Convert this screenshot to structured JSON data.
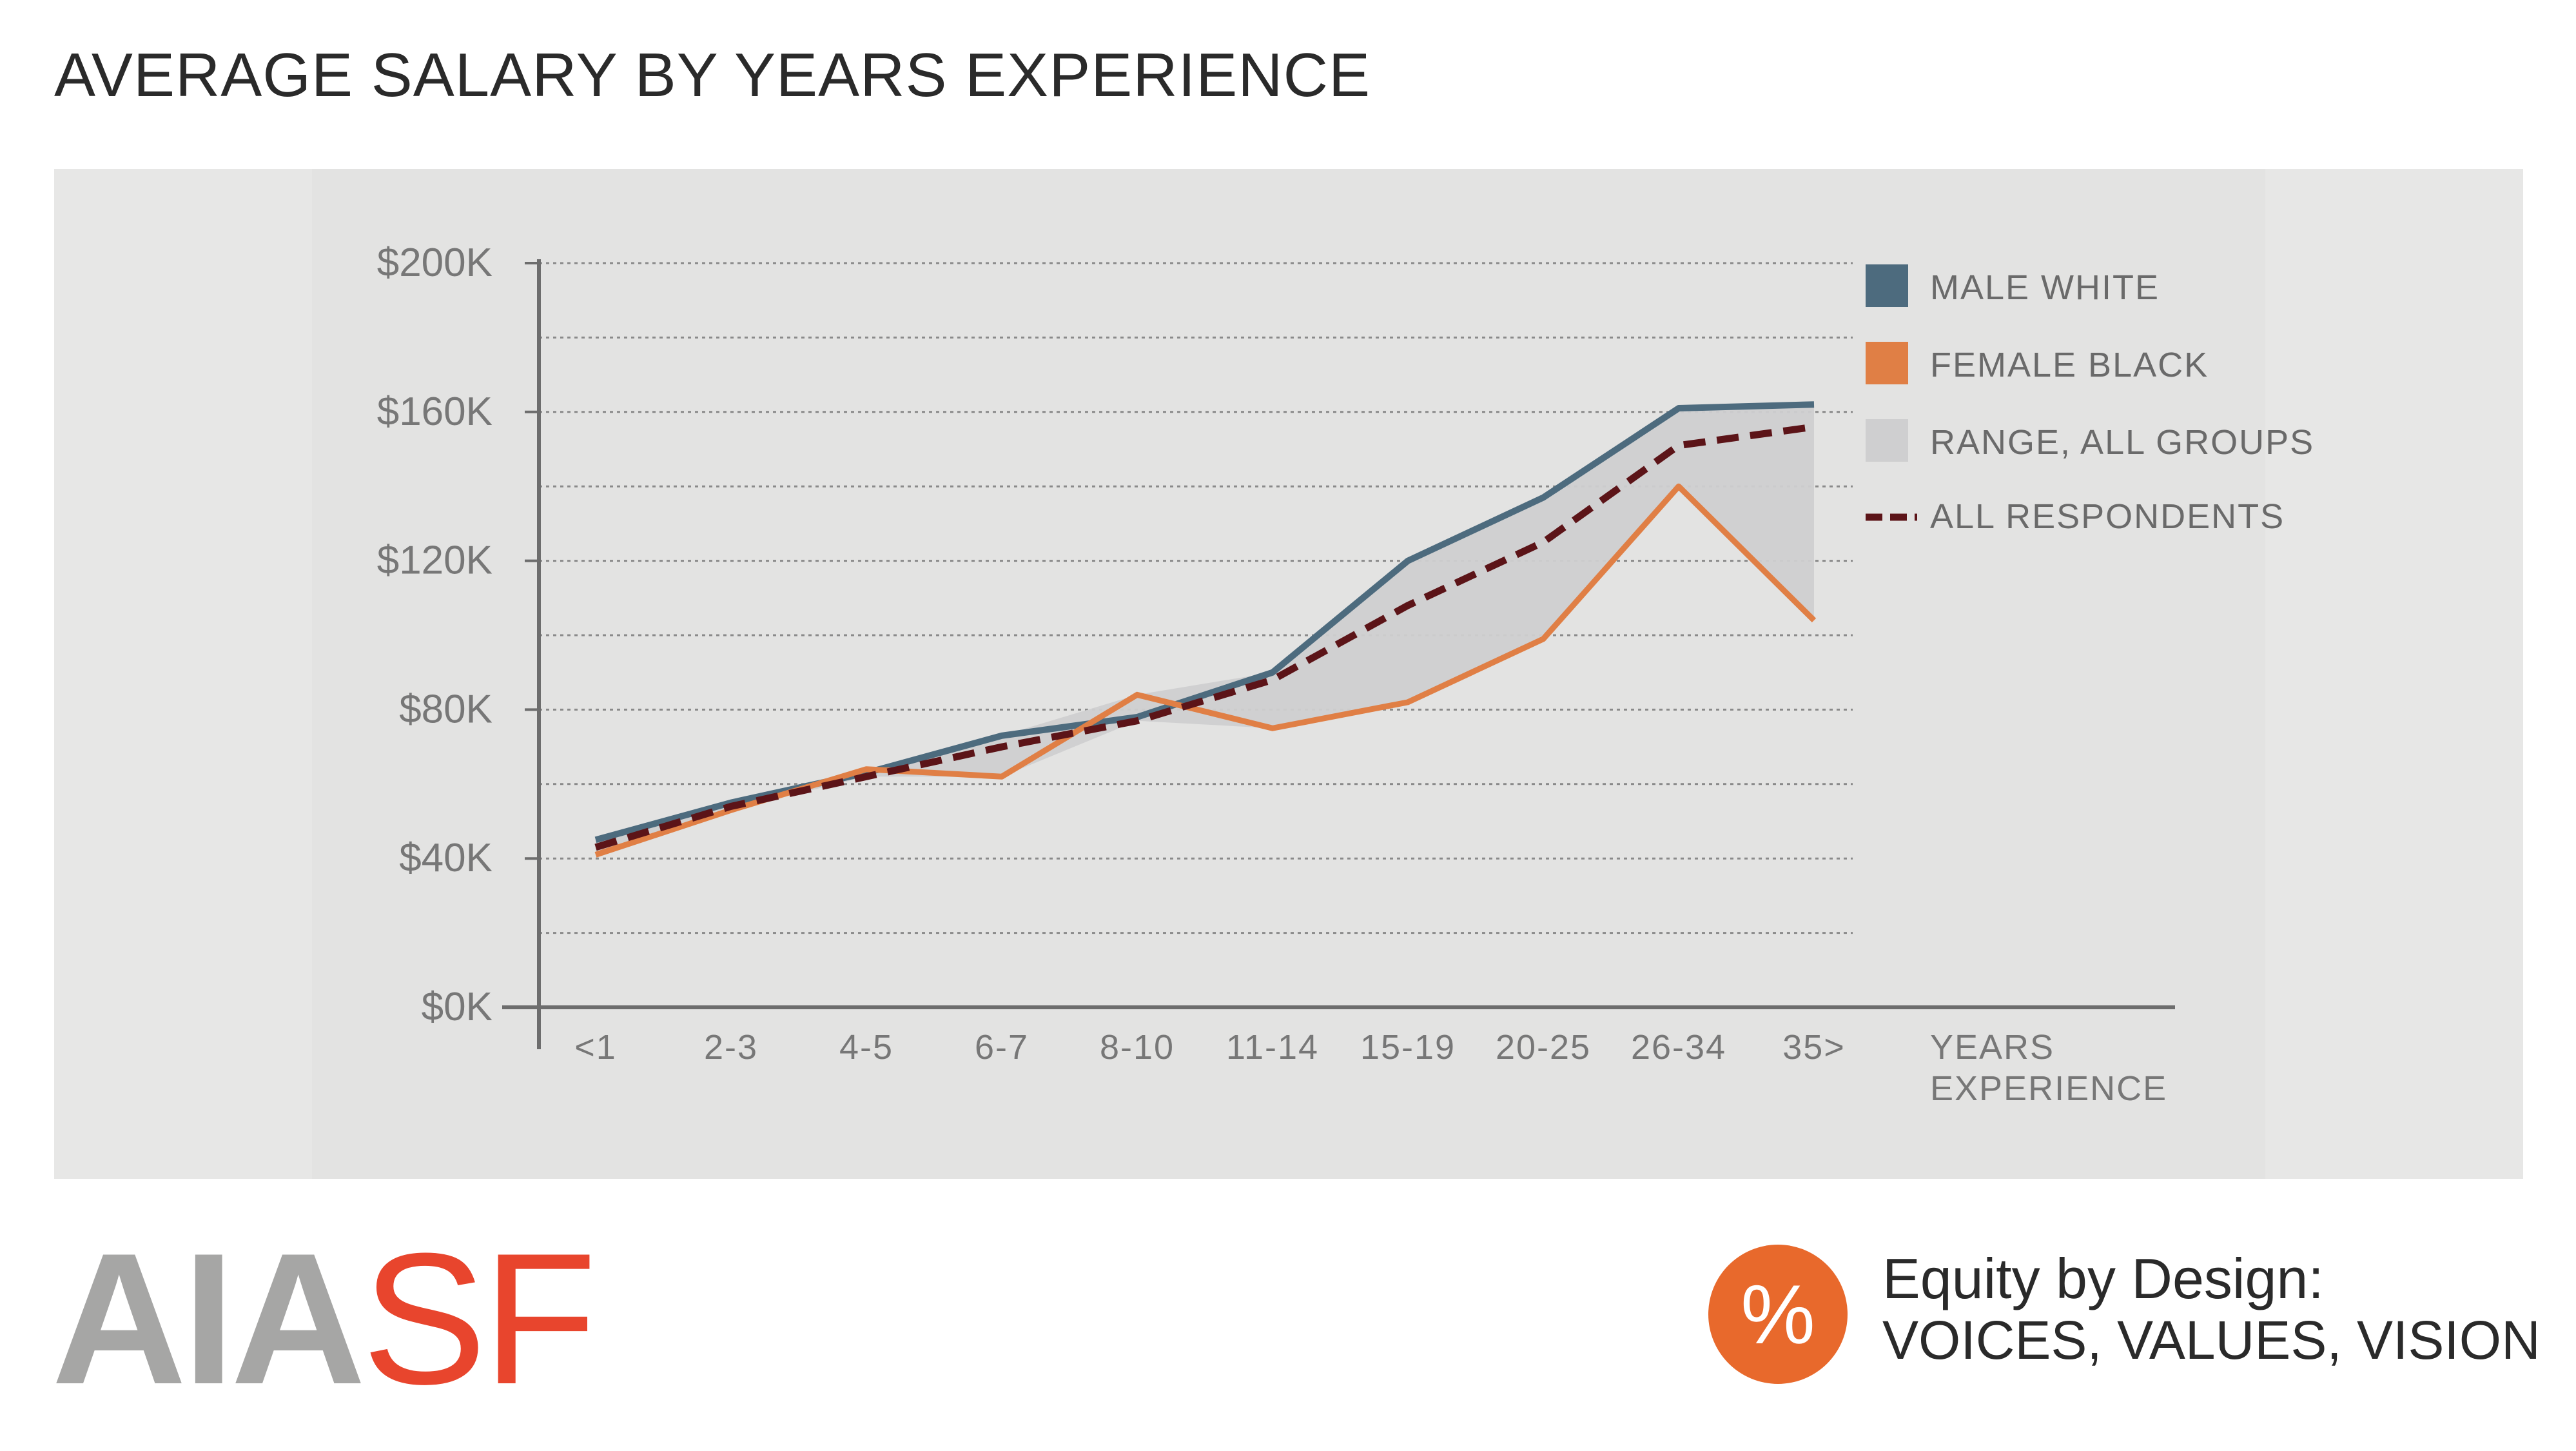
{
  "title": "AVERAGE SALARY BY YEARS EXPERIENCE",
  "logo": {
    "part1": "AIA",
    "part2": "SF"
  },
  "badge": {
    "symbol": "%"
  },
  "equity": {
    "line1": "Equity by Design:",
    "line2": "VOICES, VALUES, VISION"
  },
  "colors": {
    "male_white": "#4d6b7e",
    "female_black": "#e07f45",
    "range": "#cfcfd0",
    "all_respondents": "#5c1418",
    "logo_gray": "#a6a6a5",
    "logo_red": "#e8452d",
    "badge": "#e8692c"
  },
  "chart_data": {
    "type": "line",
    "title": "AVERAGE SALARY BY YEARS EXPERIENCE",
    "categories": [
      "<1",
      "2-3",
      "4-5",
      "6-7",
      "8-10",
      "11-14",
      "15-19",
      "20-25",
      "26-34",
      "35>"
    ],
    "xlabel": "YEARS EXPERIENCE",
    "xlabel_lines": [
      "YEARS",
      "EXPERIENCE"
    ],
    "ylabel": "",
    "ylim": [
      0,
      200
    ],
    "yticks": [
      0,
      40,
      80,
      120,
      160,
      200
    ],
    "ytick_labels": [
      "$0K",
      "$40K",
      "$80K",
      "$120K",
      "$160K",
      "$200K"
    ],
    "grid": true,
    "series": [
      {
        "key": "male_white",
        "name": "MALE WHITE",
        "values": [
          45,
          55,
          63,
          73,
          78,
          90,
          120,
          137,
          161,
          162
        ]
      },
      {
        "key": "female_black",
        "name": "FEMALE BLACK",
        "values": [
          41,
          53,
          64,
          62,
          84,
          75,
          82,
          99,
          140,
          104
        ]
      },
      {
        "key": "all_respondents",
        "name": "ALL RESPONDENTS",
        "values": [
          43,
          54,
          62,
          70,
          77,
          88,
          108,
          125,
          151,
          156
        ]
      }
    ],
    "range_band": {
      "name": "RANGE, ALL GROUPS"
    },
    "legend": [
      {
        "key": "male_white",
        "label": "MALE WHITE",
        "style": "swatch"
      },
      {
        "key": "female_black",
        "label": "FEMALE BLACK",
        "style": "swatch"
      },
      {
        "key": "range",
        "label": "RANGE, ALL GROUPS",
        "style": "swatch"
      },
      {
        "key": "all_respondents",
        "label": "ALL RESPONDENTS",
        "style": "dash"
      }
    ],
    "legend_position": "top-right"
  }
}
